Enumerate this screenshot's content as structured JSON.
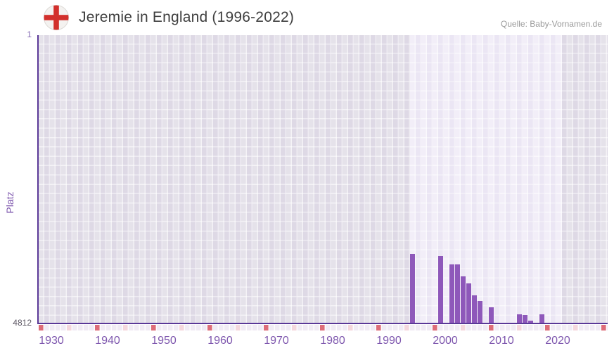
{
  "header": {
    "title": "Jeremie in England (1996-2022)",
    "source": "Quelle: Baby-Vornamen.de",
    "flag_icon": "england-flag-icon"
  },
  "axes": {
    "y_axis_title": "Platz",
    "y_top_tick": "1",
    "y_bottom_tick": "4812",
    "x_tick_labels": [
      "1930",
      "1940",
      "1950",
      "1960",
      "1970",
      "1980",
      "1990",
      "2000",
      "2010",
      "2020"
    ]
  },
  "colors": {
    "bar": "#8e58ba",
    "axis_line": "#5a3897",
    "tick_label": "#7e57ae",
    "plot_background": "#e2dfe8",
    "data_period_background": "#f0ecf7",
    "strip_decade_cell": "#dd6d79",
    "strip_half_decade_cell": "#f4d7dd",
    "title_text": "#3f3f3f",
    "source_text": "#9a9a9a",
    "flag_cross_red": "#d2302c"
  },
  "chart_data": {
    "type": "bar",
    "title": "Jeremie in England (1996-2022)",
    "xlabel": "",
    "ylabel": "Platz",
    "x_axis_range": [
      1930,
      2030
    ],
    "x_ticks": [
      1930,
      1940,
      1950,
      1960,
      1970,
      1980,
      1990,
      2000,
      2010,
      2020
    ],
    "y_axis": {
      "min": 1,
      "max": 4812,
      "inverted": true,
      "note": "rank 1 at top, 4812 at bottom"
    },
    "grid": true,
    "legend": false,
    "data_period_span": [
      1996,
      2022
    ],
    "points": [
      {
        "year": 1996,
        "value": 3660
      },
      {
        "year": 2001,
        "value": 3700
      },
      {
        "year": 2003,
        "value": 3830
      },
      {
        "year": 2004,
        "value": 3830
      },
      {
        "year": 2005,
        "value": 4030
      },
      {
        "year": 2006,
        "value": 4150
      },
      {
        "year": 2007,
        "value": 4350
      },
      {
        "year": 2008,
        "value": 4450
      },
      {
        "year": 2010,
        "value": 4555
      },
      {
        "year": 2015,
        "value": 4665
      },
      {
        "year": 2016,
        "value": 4680
      },
      {
        "year": 2017,
        "value": 4775
      },
      {
        "year": 2019,
        "value": 4665
      }
    ]
  }
}
